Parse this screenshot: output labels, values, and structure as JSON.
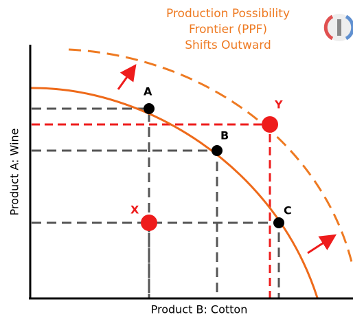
{
  "title": {
    "lines": [
      "Production Possibility",
      "Frontier (PPF)",
      "Shifts Outward"
    ]
  },
  "axes": {
    "y_label": "Product A:  Wine",
    "x_label": "Product B: Cotton"
  },
  "points": {
    "a": "A",
    "b": "B",
    "c": "C",
    "x": "X",
    "y": "Y"
  }
}
